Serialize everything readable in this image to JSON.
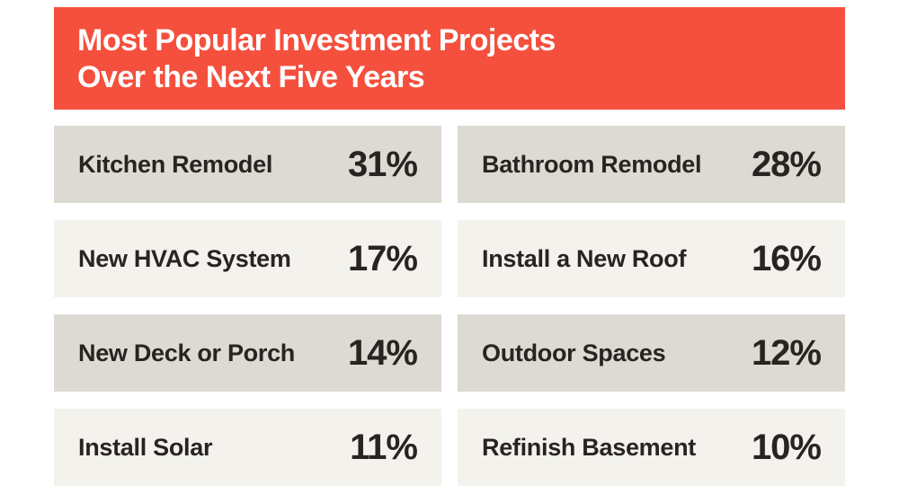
{
  "colors": {
    "page_bg": "#FFFFFF",
    "header_bg": "#F4503D",
    "header_text": "#FFFFFF",
    "cell_dark": "#DDDAD3",
    "cell_light": "#F3F2ED",
    "text": "#272421"
  },
  "header": {
    "title_line1": "Most Popular Investment Projects",
    "title_line2": "Over the Next Five Years"
  },
  "grid": {
    "items": [
      {
        "label": "Kitchen Remodel",
        "percent": "31%"
      },
      {
        "label": "Bathroom Remodel",
        "percent": "28%"
      },
      {
        "label": "New HVAC System",
        "percent": "17%"
      },
      {
        "label": "Install a New Roof",
        "percent": "16%"
      },
      {
        "label": "New Deck or Porch",
        "percent": "14%"
      },
      {
        "label": "Outdoor Spaces",
        "percent": "12%"
      },
      {
        "label": "Install Solar",
        "percent": "11%"
      },
      {
        "label": "Refinish Basement",
        "percent": "10%"
      }
    ]
  },
  "chart_data": {
    "type": "table",
    "title": "Most Popular Investment Projects Over the Next Five Years",
    "categories": [
      "Kitchen Remodel",
      "Bathroom Remodel",
      "New HVAC System",
      "Install a New Roof",
      "New Deck or Porch",
      "Outdoor Spaces",
      "Install Solar",
      "Refinish Basement"
    ],
    "values": [
      31,
      28,
      17,
      16,
      14,
      12,
      11,
      10
    ],
    "unit": "%",
    "layout": "2-column grid, 4 rows, reading order left-to-right"
  }
}
